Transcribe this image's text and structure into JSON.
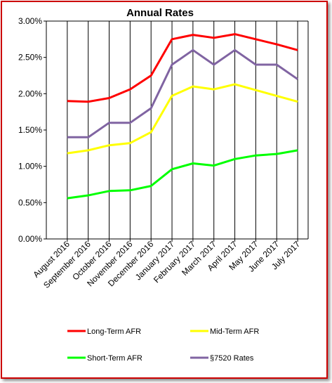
{
  "chart_data": {
    "type": "line",
    "title": "Annual Rates",
    "xlabel": "",
    "ylabel": "",
    "categories": [
      "August 2016",
      "September 2016",
      "October 2016",
      "November 2016",
      "December 2016",
      "January 2017",
      "February 2017",
      "March  2017",
      "April  2017",
      "May  2017",
      "June 2017",
      "July 2017"
    ],
    "ylim": [
      0,
      3.0
    ],
    "yticks": [
      "0.00%",
      "0.50%",
      "1.00%",
      "1.50%",
      "2.00%",
      "2.50%",
      "3.00%"
    ],
    "grid": "vertical",
    "legend_position": "bottom",
    "series": [
      {
        "name": "Long-Term AFR",
        "color": "#ff0000",
        "values": [
          1.9,
          1.89,
          1.94,
          2.06,
          2.25,
          2.75,
          2.81,
          2.77,
          2.82,
          2.75,
          2.68,
          2.6
        ]
      },
      {
        "name": "Mid-Term AFR",
        "color": "#ffff00",
        "values": [
          1.18,
          1.22,
          1.29,
          1.32,
          1.47,
          1.97,
          2.1,
          2.06,
          2.13,
          2.05,
          1.97,
          1.89
        ]
      },
      {
        "name": "Short-Term AFR",
        "color": "#00ff00",
        "values": [
          0.56,
          0.6,
          0.66,
          0.67,
          0.73,
          0.96,
          1.04,
          1.01,
          1.1,
          1.15,
          1.17,
          1.22
        ]
      },
      {
        "name": "§7520 Rates",
        "color": "#8064a2",
        "values": [
          1.4,
          1.4,
          1.6,
          1.6,
          1.8,
          2.4,
          2.6,
          2.4,
          2.6,
          2.4,
          2.4,
          2.2
        ]
      }
    ]
  }
}
